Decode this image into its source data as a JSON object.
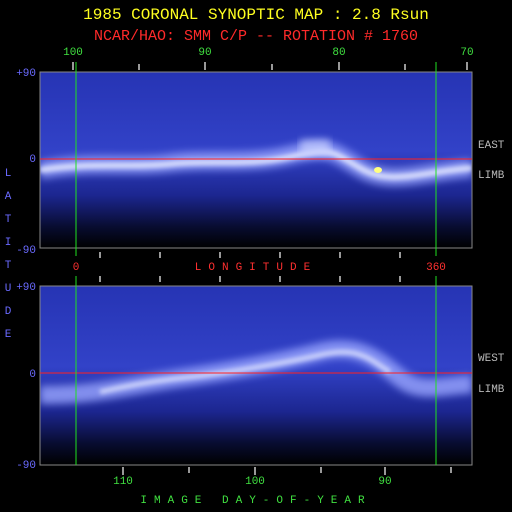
{
  "title": "1985 CORONAL SYNOPTIC MAP : 2.8 Rsun",
  "subtitle": "NCAR/HAO: SMM C/P -- ROTATION # 1760",
  "y_axis_label": "LATITUDE",
  "top_panel": {
    "top_axis_labels": [
      "100",
      "90",
      "80",
      "70"
    ],
    "lat_labels": [
      "+90",
      "0",
      "-90"
    ],
    "side_labels": [
      "EAST",
      "LIMB"
    ]
  },
  "longitude_axis": {
    "start": "0",
    "label": "LONGITUDE",
    "end": "360"
  },
  "bottom_panel": {
    "lat_labels": [
      "+90",
      "0",
      "-90"
    ],
    "side_labels": [
      "WEST",
      "LIMB"
    ],
    "bottom_axis_labels": [
      "110",
      "100",
      "90"
    ]
  },
  "x_axis_label": "IMAGE DAY-OF-YEAR"
}
